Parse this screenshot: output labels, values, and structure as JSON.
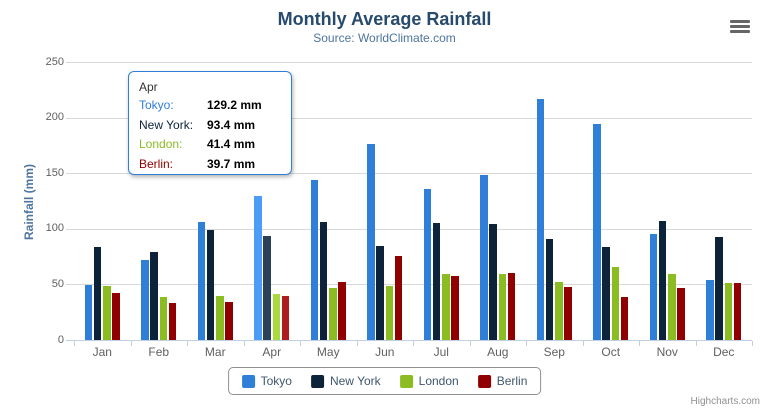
{
  "chart_data": {
    "type": "bar",
    "title": "Monthly Average Rainfall",
    "subtitle": "Source: WorldClimate.com",
    "categories": [
      "Jan",
      "Feb",
      "Mar",
      "Apr",
      "May",
      "Jun",
      "Jul",
      "Aug",
      "Sep",
      "Oct",
      "Nov",
      "Dec"
    ],
    "series": [
      {
        "name": "Tokyo",
        "color": "#2f7ed8",
        "values": [
          49.9,
          71.5,
          106.4,
          129.2,
          144.0,
          176.0,
          135.6,
          148.5,
          216.4,
          194.1,
          95.6,
          54.4
        ]
      },
      {
        "name": "New York",
        "color": "#0d233a",
        "values": [
          83.6,
          78.8,
          98.5,
          93.4,
          106.0,
          84.5,
          105.0,
          104.3,
          91.2,
          83.5,
          106.6,
          92.3
        ]
      },
      {
        "name": "London",
        "color": "#8bbc21",
        "values": [
          48.9,
          38.8,
          39.3,
          41.4,
          47.0,
          48.3,
          59.0,
          59.6,
          52.4,
          65.2,
          59.3,
          51.2
        ]
      },
      {
        "name": "Berlin",
        "color": "#910000",
        "values": [
          42.4,
          33.2,
          34.5,
          39.7,
          52.6,
          75.5,
          57.4,
          60.4,
          47.6,
          39.1,
          46.8,
          51.1
        ]
      }
    ],
    "xlabel": "",
    "ylabel": "Rainfall (mm)",
    "unit": "mm",
    "ylim": [
      0,
      250
    ],
    "y_ticks": [
      0,
      50,
      100,
      150,
      200,
      250
    ],
    "grid": true,
    "legend_position": "bottom",
    "hovered_category": "Apr"
  },
  "tooltip": {
    "header": "Apr",
    "border_color": "#2f7ed8",
    "rows": [
      {
        "name": "Tokyo:",
        "value": "129.2 mm",
        "color": "#2f7ed8"
      },
      {
        "name": "New York:",
        "value": "93.4 mm",
        "color": "#0d233a"
      },
      {
        "name": "London:",
        "value": "41.4 mm",
        "color": "#8bbc21"
      },
      {
        "name": "Berlin:",
        "value": "39.7 mm",
        "color": "#910000"
      }
    ]
  },
  "colors": {
    "title": "#274b6d",
    "subtitle": "#4d759e",
    "axis_labels": "#606060",
    "gridline": "#d8d8d8",
    "axis_line": "#c0d0e0",
    "legend_border": "#909090",
    "legend_text": "#3e576f",
    "credit": "#909090"
  },
  "credit": "Highcharts.com"
}
